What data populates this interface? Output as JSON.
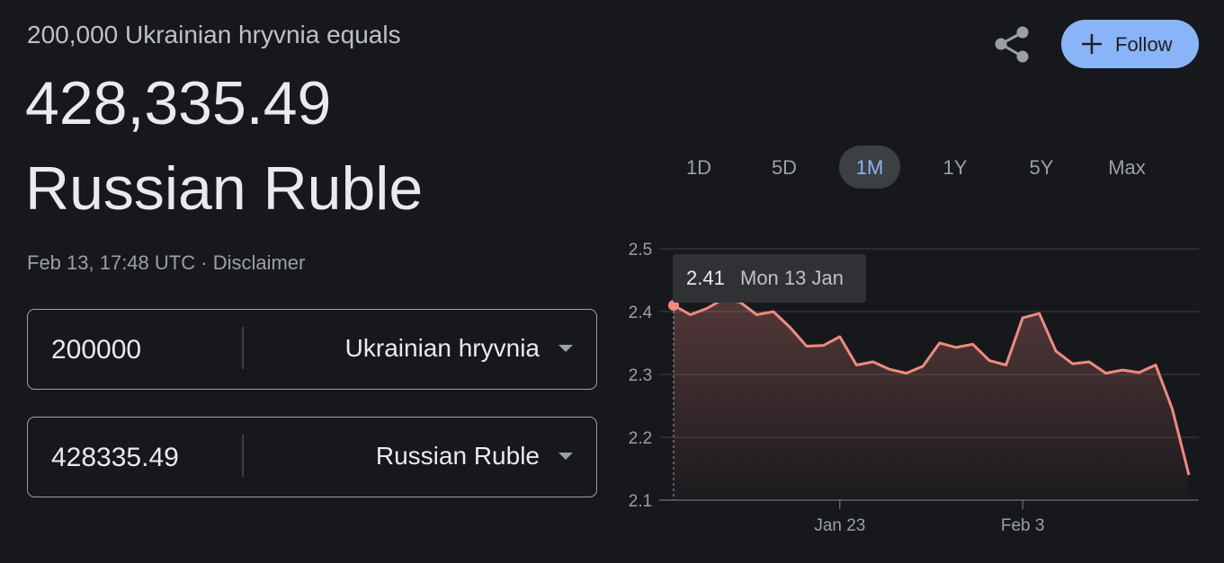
{
  "header": {
    "subtitle": "200,000 Ukrainian hryvnia equals",
    "amount": "428,335.49",
    "currency": "Russian Ruble",
    "timestamp": "Feb 13, 17:48 UTC",
    "separator": "·",
    "disclaimer": "Disclaimer",
    "follow": "Follow"
  },
  "converter": {
    "rows": [
      {
        "amount": "200000",
        "currency": "Ukrainian hryvnia"
      },
      {
        "amount": "428335.49",
        "currency": "Russian Ruble"
      }
    ]
  },
  "chart_data": {
    "type": "line",
    "ranges": [
      "1D",
      "5D",
      "1M",
      "1Y",
      "5Y",
      "Max"
    ],
    "selected_range": 2,
    "x": [
      "Jan 13",
      "Jan 14",
      "Jan 15",
      "Jan 16",
      "Jan 17",
      "Jan 18",
      "Jan 19",
      "Jan 20",
      "Jan 21",
      "Jan 22",
      "Jan 23",
      "Jan 24",
      "Jan 25",
      "Jan 26",
      "Jan 27",
      "Jan 28",
      "Jan 29",
      "Jan 30",
      "Jan 31",
      "Feb 1",
      "Feb 2",
      "Feb 3",
      "Feb 4",
      "Feb 5",
      "Feb 6",
      "Feb 7",
      "Feb 8",
      "Feb 9",
      "Feb 10",
      "Feb 11",
      "Feb 12",
      "Feb 13"
    ],
    "series": [
      {
        "color": "#ee8a80",
        "values": [
          2.41,
          2.395,
          2.405,
          2.42,
          2.415,
          2.395,
          2.4,
          2.375,
          2.345,
          2.346,
          2.36,
          2.315,
          2.32,
          2.308,
          2.302,
          2.313,
          2.35,
          2.343,
          2.348,
          2.322,
          2.315,
          2.39,
          2.397,
          2.337,
          2.317,
          2.32,
          2.302,
          2.307,
          2.303,
          2.315,
          2.245,
          2.14
        ]
      }
    ],
    "ylim": [
      2.1,
      2.5
    ],
    "yticks": [
      2.1,
      2.2,
      2.3,
      2.4,
      2.5
    ],
    "xticks": [
      "Jan 23",
      "Feb 3"
    ],
    "grid": true,
    "tooltip_index": 0,
    "tooltip_label": "Mon 13 Jan"
  }
}
